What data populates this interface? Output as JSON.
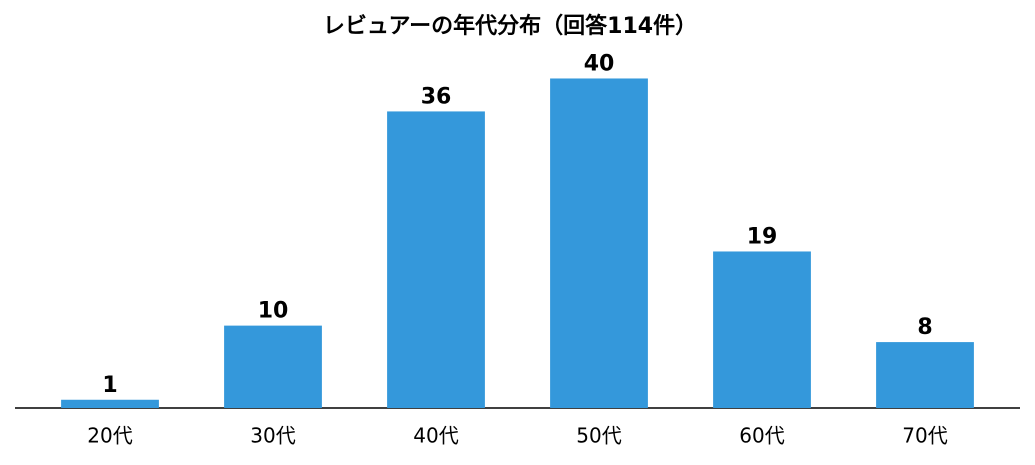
{
  "chart_data": {
    "type": "bar",
    "title": "レビュアーの年代分布（回答114件）",
    "categories": [
      "20代",
      "30代",
      "40代",
      "50代",
      "60代",
      "70代"
    ],
    "values": [
      1,
      10,
      36,
      40,
      19,
      8
    ],
    "color": "#3498db",
    "ylim": [
      0,
      42
    ],
    "grid": false
  }
}
